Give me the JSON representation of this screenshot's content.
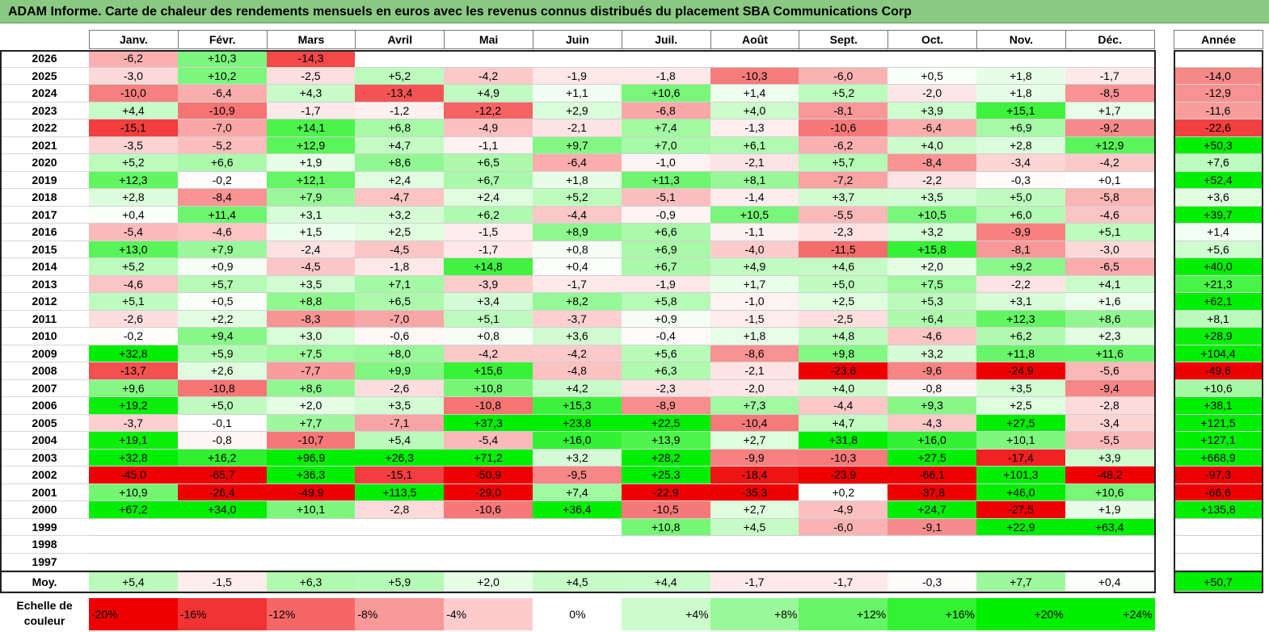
{
  "title": "ADAM Informe. Carte de chaleur des rendements mensuels en euros avec les revenus connus distribués du placement SBA Communications Corp",
  "chart_data": {
    "type": "heatmap",
    "title": "ADAM Informe. Carte de chaleur des rendements mensuels en euros avec les revenus connus distribués du placement SBA Communications Corp",
    "columns": [
      "Janv.",
      "Févr.",
      "Mars",
      "Avril",
      "Mai",
      "Juin",
      "Juil.",
      "Août",
      "Sept.",
      "Oct.",
      "Nov.",
      "Déc."
    ],
    "year_header": "Année",
    "avg_label": "Moy.",
    "rows": [
      {
        "year": "2026",
        "months": [
          "-6,2",
          "+10,3",
          "-14,3",
          "",
          "",
          "",
          "",
          "",
          "",
          "",
          "",
          ""
        ],
        "annual": ""
      },
      {
        "year": "2025",
        "months": [
          "-3,0",
          "+10,2",
          "-2,5",
          "+5,2",
          "-4,2",
          "-1,9",
          "-1,8",
          "-10,3",
          "-6,0",
          "+0,5",
          "+1,8",
          "-1,7"
        ],
        "annual": "-14,0"
      },
      {
        "year": "2024",
        "months": [
          "-10,0",
          "-6,4",
          "+4,3",
          "-13,4",
          "+4,9",
          "+1,1",
          "+10,6",
          "+1,4",
          "+5,2",
          "-2,0",
          "+1,8",
          "-8,5"
        ],
        "annual": "-12,9"
      },
      {
        "year": "2023",
        "months": [
          "+4,4",
          "-10,9",
          "-1,7",
          "-1,2",
          "-12,2",
          "+2,9",
          "-6,8",
          "+4,0",
          "-8,1",
          "+3,9",
          "+15,1",
          "+1,7"
        ],
        "annual": "-11,6"
      },
      {
        "year": "2022",
        "months": [
          "-15,1",
          "-7,0",
          "+14,1",
          "+6,8",
          "-4,9",
          "-2,1",
          "+7,4",
          "-1,3",
          "-10,6",
          "-6,4",
          "+6,9",
          "-9,2"
        ],
        "annual": "-22,6"
      },
      {
        "year": "2021",
        "months": [
          "-3,5",
          "-5,2",
          "+12,9",
          "+4,7",
          "-1,1",
          "+9,7",
          "+7,0",
          "+6,1",
          "-6,2",
          "+4,0",
          "+2,8",
          "+12,9"
        ],
        "annual": "+50,3"
      },
      {
        "year": "2020",
        "months": [
          "+5,2",
          "+6,6",
          "+1,9",
          "+8,6",
          "+6,5",
          "-6,4",
          "-1,0",
          "-2,1",
          "+5,7",
          "-8,4",
          "-3,4",
          "-4,2"
        ],
        "annual": "+7,6"
      },
      {
        "year": "2019",
        "months": [
          "+12,3",
          "-0,2",
          "+12,1",
          "+2,4",
          "+6,7",
          "+1,8",
          "+11,3",
          "+8,1",
          "-7,2",
          "-2,2",
          "-0,3",
          "+0,1"
        ],
        "annual": "+52,4"
      },
      {
        "year": "2018",
        "months": [
          "+2,8",
          "-8,4",
          "+7,9",
          "-4,7",
          "+2,4",
          "+5,2",
          "-5,1",
          "-1,4",
          "+3,7",
          "+3,5",
          "+5,0",
          "-5,8"
        ],
        "annual": "+3,6"
      },
      {
        "year": "2017",
        "months": [
          "+0,4",
          "+11,4",
          "+3,1",
          "+3,2",
          "+6,2",
          "-4,4",
          "-0,9",
          "+10,5",
          "-5,5",
          "+10,5",
          "+6,0",
          "-4,6"
        ],
        "annual": "+39,7"
      },
      {
        "year": "2016",
        "months": [
          "-5,4",
          "-4,6",
          "+1,5",
          "+2,5",
          "-1,5",
          "+8,9",
          "+6,6",
          "-1,1",
          "-2,3",
          "+3,2",
          "-9,9",
          "+5,1"
        ],
        "annual": "+1,4"
      },
      {
        "year": "2015",
        "months": [
          "+13,0",
          "+7,9",
          "-2,4",
          "-4,5",
          "-1,7",
          "+0,8",
          "+6,9",
          "-4,0",
          "-11,5",
          "+15,8",
          "-8,1",
          "-3,0"
        ],
        "annual": "+5,6"
      },
      {
        "year": "2014",
        "months": [
          "+5,2",
          "+0,9",
          "-4,5",
          "-1,8",
          "+14,8",
          "+0,4",
          "+6,7",
          "+4,9",
          "+4,6",
          "+2,0",
          "+9,2",
          "-6,5"
        ],
        "annual": "+40,0"
      },
      {
        "year": "2013",
        "months": [
          "-4,6",
          "+5,7",
          "+3,5",
          "+7,1",
          "-3,9",
          "-1,7",
          "-1,9",
          "+1,7",
          "+5,0",
          "+7,5",
          "-2,2",
          "+4,1"
        ],
        "annual": "+21,3"
      },
      {
        "year": "2012",
        "months": [
          "+5,1",
          "+0,5",
          "+8,8",
          "+6,5",
          "+3,4",
          "+8,2",
          "+5,8",
          "-1,0",
          "+2,5",
          "+5,3",
          "+3,1",
          "+1,6"
        ],
        "annual": "+62,1"
      },
      {
        "year": "2011",
        "months": [
          "-2,6",
          "+2,2",
          "-8,3",
          "-7,0",
          "+5,1",
          "-3,7",
          "+0,9",
          "-1,5",
          "-2,5",
          "+6,4",
          "+12,3",
          "+8,6"
        ],
        "annual": "+8,1"
      },
      {
        "year": "2010",
        "months": [
          "-0,2",
          "+9,4",
          "+3,0",
          "-0,6",
          "+0,8",
          "+3,6",
          "-0,4",
          "+1,8",
          "+4,8",
          "-4,6",
          "+6,2",
          "+2,3"
        ],
        "annual": "+28,9"
      },
      {
        "year": "2009",
        "months": [
          "+32,8",
          "+5,9",
          "+7,5",
          "+8,0",
          "-4,2",
          "-4,2",
          "+5,6",
          "-8,6",
          "+9,8",
          "+3,2",
          "+11,8",
          "+11,6"
        ],
        "annual": "+104,4"
      },
      {
        "year": "2008",
        "months": [
          "-13,7",
          "+2,6",
          "-7,7",
          "+9,9",
          "+15,6",
          "-4,8",
          "+6,3",
          "-2,1",
          "-23,6",
          "-9,6",
          "-24,9",
          "-5,6"
        ],
        "annual": "-49,6"
      },
      {
        "year": "2007",
        "months": [
          "+9,6",
          "-10,8",
          "+8,6",
          "-2,6",
          "+10,8",
          "+4,2",
          "-2,3",
          "-2,0",
          "+4,0",
          "-0,8",
          "+3,5",
          "-9,4"
        ],
        "annual": "+10,6"
      },
      {
        "year": "2006",
        "months": [
          "+19,2",
          "+5,0",
          "+2,0",
          "+3,5",
          "-10,8",
          "+15,3",
          "-8,9",
          "+7,3",
          "-4,4",
          "+9,3",
          "+2,5",
          "-2,8"
        ],
        "annual": "+38,1"
      },
      {
        "year": "2005",
        "months": [
          "-3,7",
          "-0,1",
          "+7,7",
          "-7,1",
          "+37,3",
          "+23,8",
          "+22,5",
          "-10,4",
          "+4,7",
          "-4,3",
          "+27,5",
          "-3,4"
        ],
        "annual": "+121,5"
      },
      {
        "year": "2004",
        "months": [
          "+19,1",
          "-0,8",
          "-10,7",
          "+5,4",
          "-5,4",
          "+16,0",
          "+13,9",
          "+2,7",
          "+31,8",
          "+16,0",
          "+10,1",
          "-5,5"
        ],
        "annual": "+127,1"
      },
      {
        "year": "2003",
        "months": [
          "+32,8",
          "+16,2",
          "+96,9",
          "+26,3",
          "+71,2",
          "+3,2",
          "+28,2",
          "-9,9",
          "-10,3",
          "+27,5",
          "-17,4",
          "+3,9"
        ],
        "annual": "+668,9"
      },
      {
        "year": "2002",
        "months": [
          "-45,0",
          "-65,7",
          "+36,3",
          "-15,1",
          "-50,9",
          "-9,5",
          "+25,3",
          "-18,4",
          "-23,9",
          "-66,1",
          "+101,3",
          "-48,2"
        ],
        "annual": "-97,3"
      },
      {
        "year": "2001",
        "months": [
          "+10,9",
          "-26,4",
          "-49,9",
          "+113,5",
          "-29,0",
          "+7,4",
          "-22,9",
          "-35,3",
          "+0,2",
          "-37,8",
          "+46,0",
          "+10,6"
        ],
        "annual": "-66,6"
      },
      {
        "year": "2000",
        "months": [
          "+67,2",
          "+34,0",
          "+10,1",
          "-2,8",
          "-10,6",
          "+36,4",
          "-10,5",
          "+2,7",
          "-4,9",
          "+24,7",
          "-27,5",
          "+1,9"
        ],
        "annual": "+135,8"
      },
      {
        "year": "1999",
        "months": [
          "",
          "",
          "",
          "",
          "",
          "",
          "+10,8",
          "+4,5",
          "-6,0",
          "-9,1",
          "+22,9",
          "+63,4"
        ],
        "annual": ""
      },
      {
        "year": "1998",
        "months": [
          "",
          "",
          "",
          "",
          "",
          "",
          "",
          "",
          "",
          "",
          "",
          ""
        ],
        "annual": ""
      },
      {
        "year": "1997",
        "months": [
          "",
          "",
          "",
          "",
          "",
          "",
          "",
          "",
          "",
          "",
          "",
          ""
        ],
        "annual": ""
      }
    ],
    "averages": [
      "+5,4",
      "-1,5",
      "+6,3",
      "+5,9",
      "+2,0",
      "+4,5",
      "+4,4",
      "-1,7",
      "-1,7",
      "-0,3",
      "+7,7",
      "+0,4"
    ],
    "average_annual": "+50,7",
    "scale": {
      "label": "Echelle de couleur",
      "steps": [
        "-20%",
        "-16%",
        "-12%",
        "-8%",
        "-4%",
        "0%",
        "+4%",
        "+8%",
        "+12%",
        "+16%",
        "+20%",
        "+24%"
      ]
    }
  },
  "colors": {
    "positive": "#00ee00",
    "negative": "#ee0000",
    "neutral": "#ffffff",
    "title_bar": "#8ac982"
  }
}
